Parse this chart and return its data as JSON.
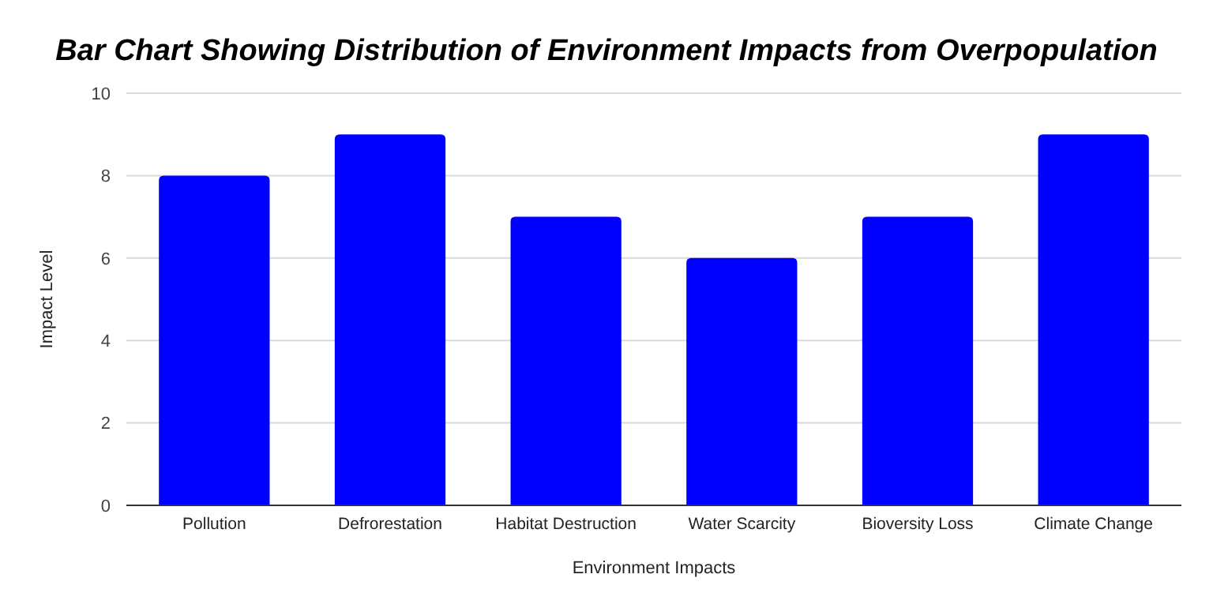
{
  "chart_data": {
    "type": "bar",
    "title": "Bar Chart Showing Distribution of Environment Impacts from Overpopulation",
    "xlabel": "Environment Impacts",
    "ylabel": "Impact Level",
    "categories": [
      "Pollution",
      "Defrorestation",
      "Habitat Destruction",
      "Water Scarcity",
      "Bioversity Loss",
      "Climate Change"
    ],
    "values": [
      8,
      9,
      7,
      6,
      7,
      9
    ],
    "color": "#0000ff",
    "ylim": [
      0,
      10
    ],
    "yticks": [
      0,
      2,
      4,
      6,
      8,
      10
    ],
    "grid": "y"
  }
}
